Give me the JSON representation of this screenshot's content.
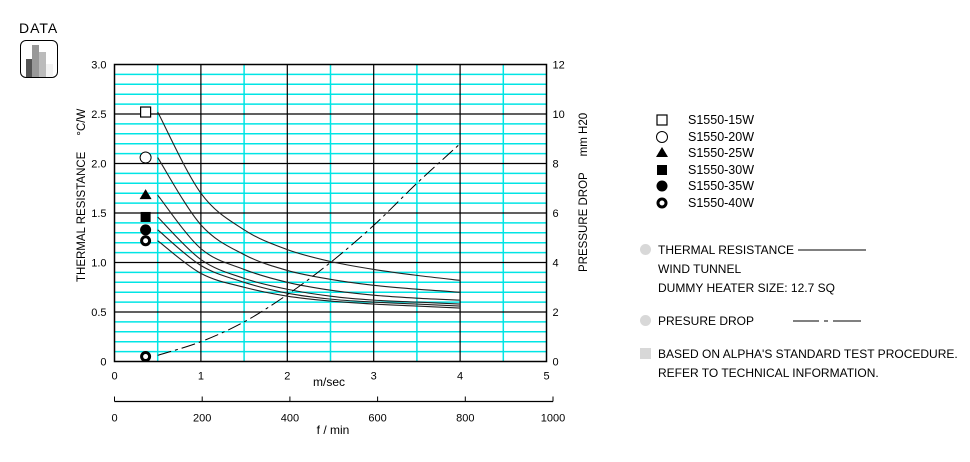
{
  "logo": {
    "label": "DATA",
    "icon": "bar-chart-icon"
  },
  "chart_data": {
    "type": "line",
    "x": [
      0.5,
      1,
      1.5,
      2,
      2.5,
      3,
      3.5,
      4
    ],
    "xlabel": "m/sec",
    "xlim": [
      0,
      5
    ],
    "xticks": [
      "0",
      "1",
      "2",
      "3",
      "4",
      "5"
    ],
    "x2label": "f / min",
    "x2lim": [
      0,
      1000
    ],
    "x2ticks": [
      "0",
      "200",
      "400",
      "600",
      "800",
      "1000"
    ],
    "ylabel": "THERMAL RESISTANCE",
    "yunit": "°C/W",
    "ylim": [
      0,
      3.0
    ],
    "yticks": [
      "0",
      "0.5",
      "1.0",
      "1.5",
      "2.0",
      "2.5",
      "3.0"
    ],
    "y2label": "PRESSURE DROP",
    "y2unit": "mm H20",
    "y2lim": [
      0,
      12
    ],
    "y2ticks": [
      "0",
      "2",
      "4",
      "6",
      "8",
      "10",
      "12"
    ],
    "grid": true,
    "legend_position": "right",
    "series": [
      {
        "name": "S1550-15W",
        "marker": "open-square",
        "values": [
          2.52,
          1.7,
          1.33,
          1.13,
          1.01,
          0.93,
          0.87,
          0.82
        ]
      },
      {
        "name": "S1550-20W",
        "marker": "open-circle",
        "values": [
          2.06,
          1.38,
          1.08,
          0.92,
          0.83,
          0.77,
          0.73,
          0.7
        ]
      },
      {
        "name": "S1550-25W",
        "marker": "filled-triangle",
        "values": [
          1.68,
          1.14,
          0.93,
          0.8,
          0.72,
          0.67,
          0.64,
          0.62
        ]
      },
      {
        "name": "S1550-30W",
        "marker": "filled-square",
        "values": [
          1.46,
          1.03,
          0.84,
          0.73,
          0.66,
          0.62,
          0.6,
          0.58
        ]
      },
      {
        "name": "S1550-35W",
        "marker": "filled-circle",
        "values": [
          1.33,
          0.97,
          0.8,
          0.69,
          0.63,
          0.6,
          0.58,
          0.56
        ]
      },
      {
        "name": "S1550-40W",
        "marker": "thick-ring",
        "values": [
          1.22,
          0.89,
          0.75,
          0.66,
          0.61,
          0.58,
          0.56,
          0.54
        ]
      }
    ],
    "pressure_drop": {
      "axis": "right",
      "style": "dash-dot",
      "values": [
        0.25,
        0.8,
        1.6,
        2.7,
        4.0,
        5.5,
        7.2,
        8.8
      ]
    }
  },
  "notes": {
    "thermal_resistance": "THERMAL RESISTANCE",
    "wind_tunnel": "WIND TUNNEL",
    "dummy_heater": "DUMMY HEATER SIZE: 12.7 SQ",
    "pressure_drop": "PRESURE DROP",
    "based_on": "BASED ON ALPHA'S STANDARD TEST PROCEDURE.",
    "refer": "REFER TO TECHNICAL INFORMATION."
  },
  "colors": {
    "minor_grid": "#00e5e5",
    "major_grid": "#000000",
    "bullet": "#d8d8d8"
  }
}
